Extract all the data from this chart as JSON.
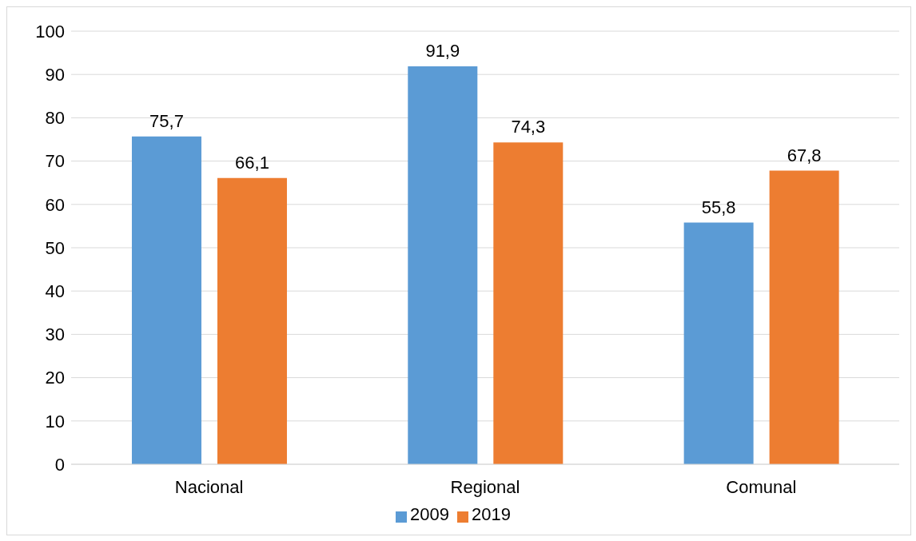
{
  "chart_data": {
    "type": "bar",
    "categories": [
      "Nacional",
      "Regional",
      "Comunal"
    ],
    "series": [
      {
        "name": "2009",
        "color": "#5b9bd5",
        "values": [
          75.7,
          91.9,
          55.8
        ],
        "value_labels": [
          "75,7",
          "91,9",
          "55,8"
        ]
      },
      {
        "name": "2019",
        "color": "#ed7d31",
        "values": [
          66.1,
          74.3,
          67.8
        ],
        "value_labels": [
          "66,1",
          "74,3",
          "67,8"
        ]
      }
    ],
    "ylim": [
      0,
      100
    ],
    "yticks": [
      0,
      10,
      20,
      30,
      40,
      50,
      60,
      70,
      80,
      90,
      100
    ],
    "grid": "y",
    "legend": "bottom"
  }
}
